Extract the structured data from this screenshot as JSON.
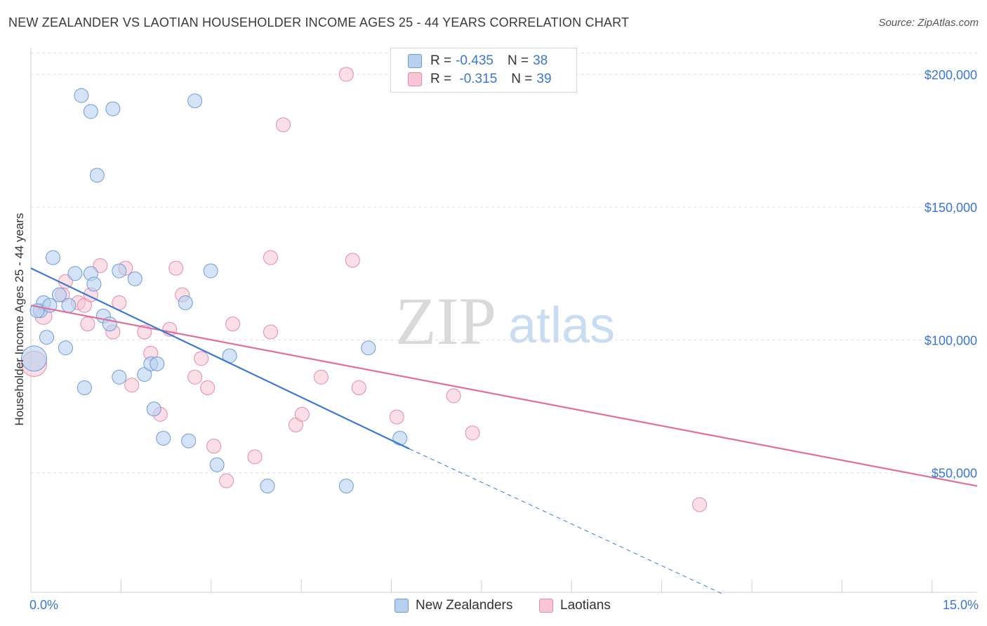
{
  "header": {
    "title": "NEW ZEALANDER VS LAOTIAN HOUSEHOLDER INCOME AGES 25 - 44 YEARS CORRELATION CHART",
    "source": "Source: ZipAtlas.com"
  },
  "watermark": {
    "zip": "ZIP",
    "atlas": "atlas"
  },
  "legend": {
    "rows": [
      {
        "r_label": "R =",
        "r_value": "-0.435",
        "n_label": "N =",
        "n_value": "38"
      },
      {
        "r_label": "R =",
        "r_value": " -0.315",
        "n_label": "N =",
        "n_value": "39"
      }
    ]
  },
  "bottom_legend": {
    "series1": "New Zealanders",
    "series2": "Laotians"
  },
  "colors": {
    "series1_fill": "#b8d0f0",
    "series1_stroke": "#6e9bd6",
    "series1_line": "#3a77d1",
    "series2_fill": "#f7c5d4",
    "series2_stroke": "#e58aa8",
    "series2_line": "#e0709a",
    "tick_label": "#3a77d1",
    "grid": "#e2e2e2"
  },
  "chart_data": {
    "type": "scatter",
    "title": "NEW ZEALANDER VS LAOTIAN HOUSEHOLDER INCOME AGES 25 - 44 YEARS CORRELATION CHART",
    "xlabel": "",
    "ylabel": "Householder Income Ages 25 - 44 years",
    "x_tick_labels": [
      "0.0%",
      "15.0%"
    ],
    "y_tick_labels": [
      "$50,000",
      "$100,000",
      "$150,000",
      "$200,000"
    ],
    "y_ticks": [
      50000,
      100000,
      150000,
      200000
    ],
    "xlim": [
      0,
      15
    ],
    "ylim": [
      5000,
      210000
    ],
    "grid": true,
    "legend_position": "bottom",
    "series": [
      {
        "name": "New Zealanders",
        "r": -0.435,
        "n": 38,
        "trend": {
          "x0": 0.0,
          "y0": 127000,
          "x1": 6.0,
          "y1": 59000,
          "dashed_to_x": 11.0,
          "dashed_to_y": 4000
        },
        "points": [
          [
            0.05,
            93000,
            18
          ],
          [
            0.15,
            111000,
            10
          ],
          [
            0.2,
            114000,
            10
          ],
          [
            0.25,
            101000,
            10
          ],
          [
            0.3,
            113000,
            10
          ],
          [
            0.35,
            131000,
            10
          ],
          [
            0.45,
            117000,
            10
          ],
          [
            0.55,
            97000,
            10
          ],
          [
            0.6,
            113000,
            10
          ],
          [
            0.7,
            125000,
            10
          ],
          [
            0.8,
            192000,
            10
          ],
          [
            0.85,
            82000,
            10
          ],
          [
            0.95,
            125000,
            10
          ],
          [
            0.95,
            186000,
            10
          ],
          [
            1.0,
            121000,
            10
          ],
          [
            1.05,
            162000,
            10
          ],
          [
            1.15,
            109000,
            10
          ],
          [
            1.25,
            106000,
            10
          ],
          [
            1.3,
            187000,
            10
          ],
          [
            1.4,
            86000,
            10
          ],
          [
            1.4,
            126000,
            10
          ],
          [
            1.65,
            123000,
            10
          ],
          [
            1.8,
            87000,
            10
          ],
          [
            1.9,
            91000,
            10
          ],
          [
            1.95,
            74000,
            10
          ],
          [
            2.0,
            91000,
            10
          ],
          [
            2.1,
            63000,
            10
          ],
          [
            2.45,
            114000,
            10
          ],
          [
            2.5,
            62000,
            10
          ],
          [
            2.6,
            190000,
            10
          ],
          [
            2.85,
            126000,
            10
          ],
          [
            2.95,
            53000,
            10
          ],
          [
            3.15,
            94000,
            10
          ],
          [
            3.75,
            45000,
            10
          ],
          [
            5.0,
            45000,
            10
          ],
          [
            5.35,
            97000,
            10
          ],
          [
            5.85,
            63000,
            10
          ],
          [
            0.1,
            111000,
            10
          ]
        ]
      },
      {
        "name": "Laotians",
        "r": -0.315,
        "n": 39,
        "trend": {
          "x0": 0.0,
          "y0": 113000,
          "x1": 15.0,
          "y1": 45000
        },
        "points": [
          [
            0.05,
            91000,
            18
          ],
          [
            0.2,
            109000,
            12
          ],
          [
            0.5,
            117000,
            10
          ],
          [
            0.55,
            122000,
            10
          ],
          [
            0.75,
            114000,
            10
          ],
          [
            0.85,
            113000,
            10
          ],
          [
            0.9,
            106000,
            10
          ],
          [
            0.95,
            117000,
            10
          ],
          [
            1.1,
            128000,
            10
          ],
          [
            1.3,
            103000,
            10
          ],
          [
            1.4,
            114000,
            10
          ],
          [
            1.5,
            127000,
            10
          ],
          [
            1.6,
            83000,
            10
          ],
          [
            1.8,
            103000,
            10
          ],
          [
            1.9,
            95000,
            10
          ],
          [
            2.05,
            72000,
            10
          ],
          [
            2.2,
            104000,
            10
          ],
          [
            2.3,
            127000,
            10
          ],
          [
            2.4,
            117000,
            10
          ],
          [
            2.6,
            86000,
            10
          ],
          [
            2.7,
            93000,
            10
          ],
          [
            2.8,
            82000,
            10
          ],
          [
            2.9,
            60000,
            10
          ],
          [
            3.1,
            47000,
            10
          ],
          [
            3.2,
            106000,
            10
          ],
          [
            3.55,
            56000,
            10
          ],
          [
            3.8,
            103000,
            10
          ],
          [
            3.8,
            131000,
            10
          ],
          [
            4.0,
            181000,
            10
          ],
          [
            4.2,
            68000,
            10
          ],
          [
            4.3,
            72000,
            10
          ],
          [
            4.6,
            86000,
            10
          ],
          [
            5.0,
            200000,
            10
          ],
          [
            5.1,
            130000,
            10
          ],
          [
            5.2,
            82000,
            10
          ],
          [
            5.8,
            71000,
            10
          ],
          [
            6.7,
            79000,
            10
          ],
          [
            7.0,
            65000,
            10
          ],
          [
            10.6,
            38000,
            10
          ]
        ]
      }
    ]
  }
}
